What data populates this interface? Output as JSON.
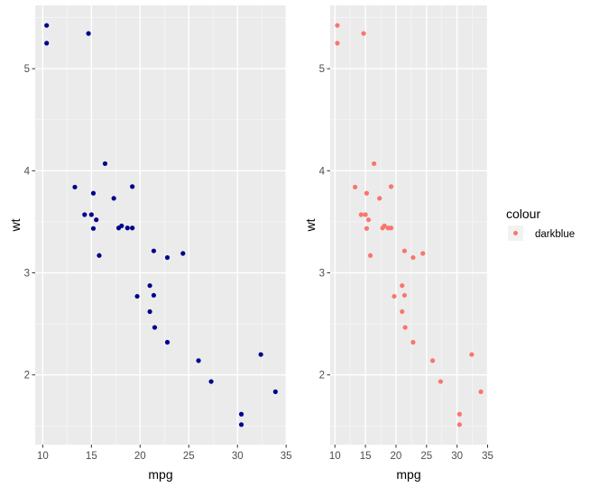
{
  "chart_data": [
    {
      "type": "scatter",
      "title": "",
      "xlabel": "mpg",
      "ylabel": "wt",
      "xlim": [
        9.225,
        35.075
      ],
      "ylim": [
        1.317,
        5.62
      ],
      "x_ticks": [
        10,
        15,
        20,
        25,
        30,
        35
      ],
      "x_minor": [
        12.5,
        17.5,
        22.5,
        27.5,
        32.5
      ],
      "y_ticks": [
        2,
        3,
        4,
        5
      ],
      "y_minor": [
        1.5,
        2.5,
        3.5,
        4.5,
        5.5
      ],
      "grid": true,
      "point_color": "#00008B",
      "legend": null,
      "x": [
        21.0,
        21.0,
        22.8,
        21.4,
        18.7,
        18.1,
        14.3,
        24.4,
        22.8,
        19.2,
        17.8,
        16.4,
        17.3,
        15.2,
        10.4,
        10.4,
        14.7,
        32.4,
        30.4,
        33.9,
        21.5,
        15.5,
        15.2,
        13.3,
        19.2,
        27.3,
        26.0,
        30.4,
        15.8,
        19.7,
        15.0,
        21.4
      ],
      "y": [
        2.62,
        2.875,
        2.32,
        3.215,
        3.44,
        3.46,
        3.57,
        3.19,
        3.15,
        3.44,
        3.44,
        4.07,
        3.73,
        3.78,
        5.25,
        5.424,
        5.345,
        2.2,
        1.615,
        1.835,
        2.465,
        3.52,
        3.435,
        3.84,
        3.845,
        1.935,
        2.14,
        1.513,
        3.17,
        2.77,
        3.57,
        2.78
      ]
    },
    {
      "type": "scatter",
      "title": "",
      "xlabel": "mpg",
      "ylabel": "wt",
      "xlim": [
        9.225,
        35.075
      ],
      "ylim": [
        1.317,
        5.62
      ],
      "x_ticks": [
        10,
        15,
        20,
        25,
        30,
        35
      ],
      "x_minor": [
        12.5,
        17.5,
        22.5,
        27.5,
        32.5
      ],
      "y_ticks": [
        2,
        3,
        4,
        5
      ],
      "y_minor": [
        1.5,
        2.5,
        3.5,
        4.5,
        5.5
      ],
      "grid": true,
      "point_color": "#F8766D",
      "legend": {
        "title": "colour",
        "entries": [
          "darkblue"
        ],
        "position": "right"
      },
      "x": [
        21.0,
        21.0,
        22.8,
        21.4,
        18.7,
        18.1,
        14.3,
        24.4,
        22.8,
        19.2,
        17.8,
        16.4,
        17.3,
        15.2,
        10.4,
        10.4,
        14.7,
        32.4,
        30.4,
        33.9,
        21.5,
        15.5,
        15.2,
        13.3,
        19.2,
        27.3,
        26.0,
        30.4,
        15.8,
        19.7,
        15.0,
        21.4
      ],
      "y": [
        2.62,
        2.875,
        2.32,
        3.215,
        3.44,
        3.46,
        3.57,
        3.19,
        3.15,
        3.44,
        3.44,
        4.07,
        3.73,
        3.78,
        5.25,
        5.424,
        5.345,
        2.2,
        1.615,
        1.835,
        2.465,
        3.52,
        3.435,
        3.84,
        3.845,
        1.935,
        2.14,
        1.513,
        3.17,
        2.77,
        3.57,
        2.78
      ]
    }
  ],
  "panels": [
    {
      "xlabel": "mpg",
      "ylabel": "wt"
    },
    {
      "xlabel": "mpg",
      "ylabel": "wt"
    }
  ],
  "legend": {
    "title": "colour",
    "entries": [
      {
        "label": "darkblue",
        "color": "#F8766D"
      }
    ]
  },
  "theme": {
    "panel_bg": "#EBEBEB",
    "grid_major": "#FFFFFF",
    "grid_minor": "#F5F5F5",
    "tick_color": "#333333",
    "legend_key_bg": "#F2F2F2"
  }
}
